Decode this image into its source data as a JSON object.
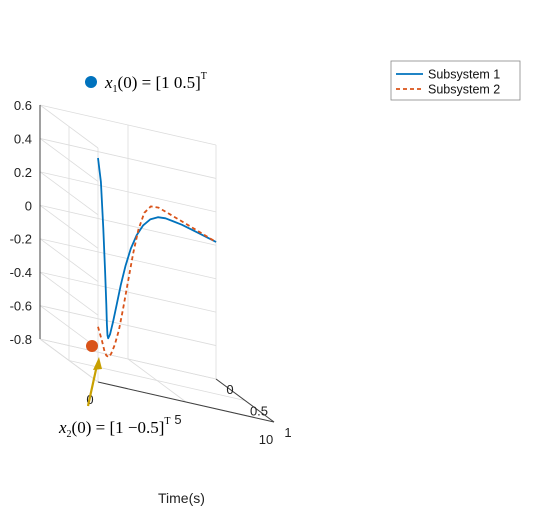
{
  "chart_data": {
    "type": "line",
    "projection": "3d",
    "xlabel": "Time(s)",
    "ylabel": "",
    "zlabel": "",
    "xlim": [
      0,
      10
    ],
    "ylim": [
      0,
      1
    ],
    "zlim": [
      -0.8,
      0.6
    ],
    "x_ticks": [
      "0",
      "5",
      "10"
    ],
    "y_ticks": [
      "0",
      "0.5",
      "1"
    ],
    "z_ticks": [
      "0.6",
      "0.4",
      "0.2",
      "0",
      "-0.2",
      "-0.4",
      "-0.6",
      "-0.8"
    ],
    "grid": true,
    "legend_position": "top-right",
    "series": [
      {
        "name": "Subsystem 1",
        "color": "#0072BD",
        "style": "solid",
        "points": [
          [
            0,
            1,
            0.54
          ],
          [
            0.2,
            0.99,
            0.4
          ],
          [
            0.4,
            0.97,
            0.12
          ],
          [
            0.6,
            0.94,
            -0.14
          ],
          [
            0.8,
            0.9,
            -0.34
          ],
          [
            1.0,
            0.85,
            -0.47
          ],
          [
            1.3,
            0.77,
            -0.55
          ],
          [
            1.6,
            0.69,
            -0.58
          ],
          [
            2.0,
            0.6,
            -0.57
          ],
          [
            2.5,
            0.5,
            -0.51
          ],
          [
            3.0,
            0.41,
            -0.42
          ],
          [
            3.5,
            0.33,
            -0.31
          ],
          [
            4.0,
            0.26,
            -0.2
          ],
          [
            4.5,
            0.2,
            -0.1
          ],
          [
            5.0,
            0.15,
            -0.02
          ],
          [
            5.5,
            0.11,
            0.04
          ],
          [
            6.0,
            0.08,
            0.08
          ],
          [
            6.5,
            0.06,
            0.1
          ],
          [
            7.0,
            0.04,
            0.1
          ],
          [
            7.5,
            0.03,
            0.09
          ],
          [
            8.0,
            0.02,
            0.08
          ],
          [
            8.5,
            0.012,
            0.065
          ],
          [
            9.0,
            0.007,
            0.05
          ],
          [
            9.5,
            0.004,
            0.035
          ],
          [
            10.0,
            0.002,
            0.02
          ]
        ]
      },
      {
        "name": "Subsystem 2",
        "color": "#D95319",
        "style": "dashed",
        "points": [
          [
            0,
            1,
            -0.47
          ],
          [
            0.4,
            0.95,
            -0.56
          ],
          [
            0.8,
            0.87,
            -0.63
          ],
          [
            1.2,
            0.78,
            -0.67
          ],
          [
            1.6,
            0.7,
            -0.69
          ],
          [
            2.0,
            0.62,
            -0.68
          ],
          [
            2.5,
            0.53,
            -0.64
          ],
          [
            3.0,
            0.45,
            -0.56
          ],
          [
            3.5,
            0.37,
            -0.44
          ],
          [
            4.0,
            0.3,
            -0.29
          ],
          [
            4.5,
            0.24,
            -0.12
          ],
          [
            5.0,
            0.18,
            0.02
          ],
          [
            5.5,
            0.13,
            0.12
          ],
          [
            6.0,
            0.09,
            0.16
          ],
          [
            6.5,
            0.07,
            0.16
          ],
          [
            7.0,
            0.05,
            0.14
          ],
          [
            7.5,
            0.035,
            0.12
          ],
          [
            8.0,
            0.022,
            0.1
          ],
          [
            8.5,
            0.014,
            0.08
          ],
          [
            9.0,
            0.008,
            0.06
          ],
          [
            9.5,
            0.004,
            0.04
          ],
          [
            10.0,
            0.002,
            0.02
          ]
        ]
      }
    ],
    "annotations": [
      {
        "var": "x",
        "sub": "1",
        "text": "(0) = [1   0.5]",
        "sup": "T",
        "marker_color": "#0072BD"
      },
      {
        "var": "x",
        "sub": "2",
        "text": "(0) = [1   −0.5]",
        "sup": "T",
        "marker_color": "#D95319",
        "arrow_color": "#C8A000"
      }
    ]
  }
}
